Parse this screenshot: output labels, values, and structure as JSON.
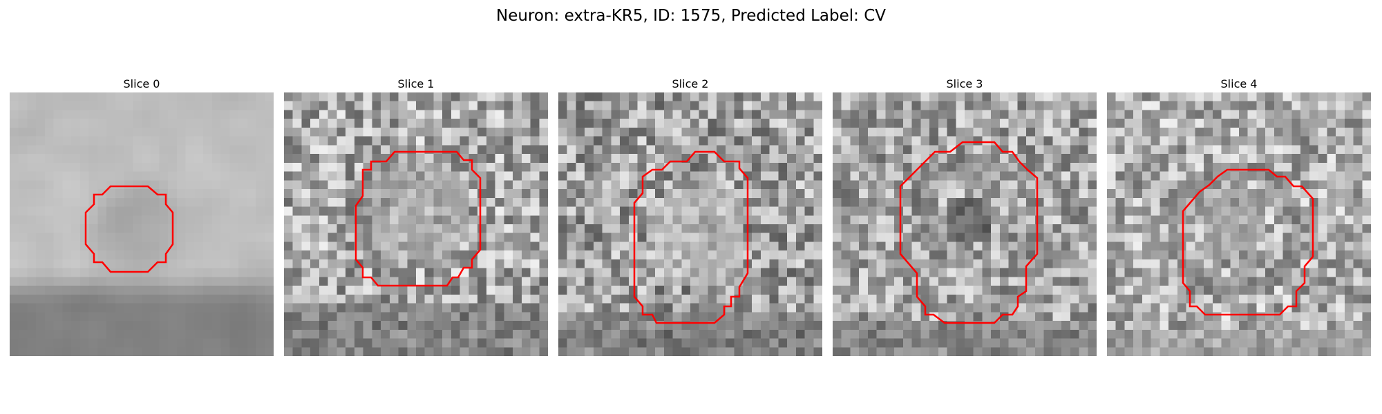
{
  "figure": {
    "title": "Neuron: extra-KR5, ID: 1575, Predicted Label: CV"
  },
  "outline_color": "#ff0000",
  "panels": [
    {
      "title": "Slice 0"
    },
    {
      "title": "Slice 1"
    },
    {
      "title": "Slice 2"
    },
    {
      "title": "Slice 3"
    },
    {
      "title": "Slice 4"
    }
  ]
}
